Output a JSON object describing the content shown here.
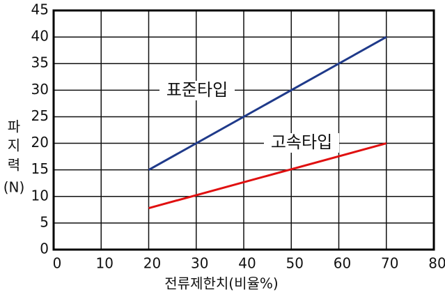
{
  "chart_data": {
    "type": "line",
    "xlabel": "전류제한치(비율%)",
    "ylabel": [
      "파",
      "지",
      "력",
      "(N)"
    ],
    "x": [
      20,
      70
    ],
    "series": [
      {
        "name": "표준타입",
        "color": "#1f3a8a",
        "values": [
          15,
          40
        ]
      },
      {
        "name": "고속타입",
        "color": "#e01010",
        "values": [
          7.8,
          20
        ]
      }
    ],
    "xlim": [
      0,
      80
    ],
    "xticks": [
      0,
      10,
      20,
      30,
      40,
      50,
      60,
      70,
      80
    ],
    "ylim": [
      0,
      45
    ],
    "yticks": [
      0,
      5,
      10,
      15,
      20,
      25,
      30,
      35,
      40,
      45
    ],
    "grid": true
  }
}
